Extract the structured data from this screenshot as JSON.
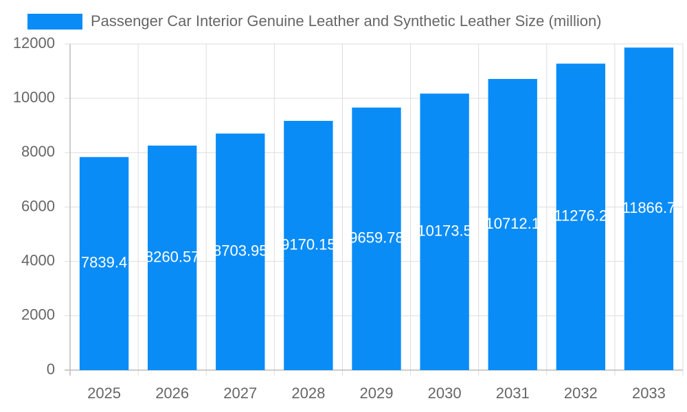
{
  "chart_data": {
    "type": "bar",
    "categories": [
      "2025",
      "2026",
      "2027",
      "2028",
      "2029",
      "2030",
      "2031",
      "2032",
      "2033"
    ],
    "series": [
      {
        "name": "Passenger Car Interior Genuine Leather and Synthetic Leather Size (million)",
        "color": "#0a8cf7",
        "values": [
          7839.4,
          8260.57,
          8703.95,
          9170.15,
          9659.78,
          10173.5,
          10712.1,
          11276.2,
          11866.7
        ]
      }
    ],
    "ylim": [
      0,
      12000
    ],
    "yticks": [
      0,
      2000,
      4000,
      6000,
      8000,
      10000,
      12000
    ],
    "grid": true,
    "legend": "top"
  }
}
